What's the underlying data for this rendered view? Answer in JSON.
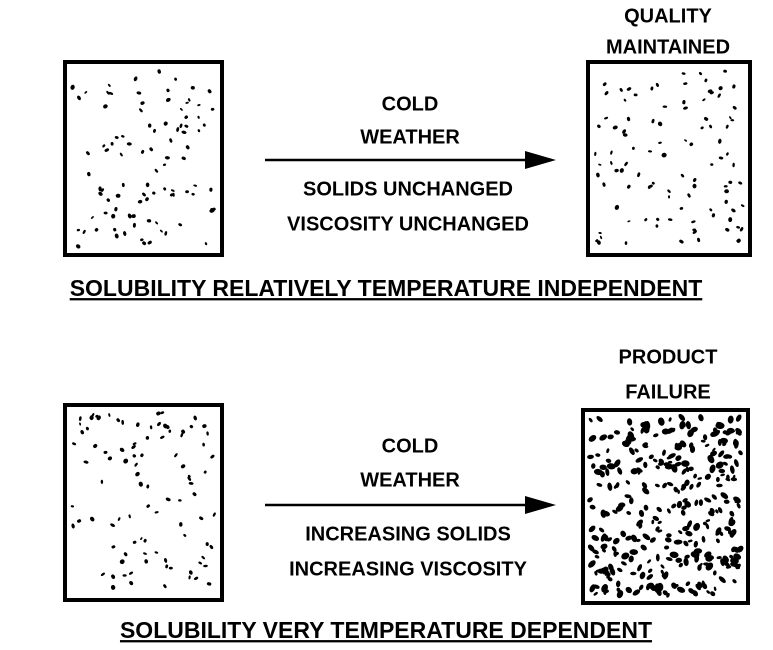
{
  "panels": [
    {
      "condition": [
        "COLD",
        "WEATHER"
      ],
      "effects": [
        "SOLIDS UNCHANGED",
        "VISCOSITY UNCHANGED"
      ],
      "result": [
        "QUALITY",
        "MAINTAINED"
      ],
      "caption": "SOLUBILITY RELATIVELY TEMPERATURE INDEPENDENT"
    },
    {
      "condition": [
        "COLD",
        "WEATHER"
      ],
      "effects": [
        "INCREASING SOLIDS",
        "INCREASING VISCOSITY"
      ],
      "result": [
        "PRODUCT",
        "FAILURE"
      ],
      "caption": "SOLUBILITY VERY TEMPERATURE DEPENDENT"
    }
  ]
}
